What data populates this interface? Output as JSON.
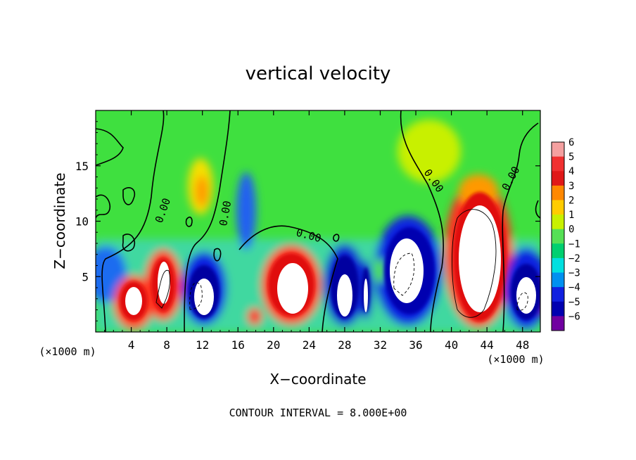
{
  "chart_data": {
    "type": "heatmap",
    "title": "vertical velocity",
    "xlabel": "X−coordinate",
    "ylabel": "Z−coordinate",
    "x_unit": "(×1000 m)",
    "y_unit": "(×1000 m)",
    "xlim": [
      0,
      50
    ],
    "ylim": [
      0,
      20
    ],
    "x_ticks": [
      4,
      8,
      12,
      16,
      20,
      24,
      28,
      32,
      36,
      40,
      44,
      48
    ],
    "y_ticks": [
      5,
      10,
      15
    ],
    "colorbar": {
      "ticks": [
        6,
        5,
        4,
        3,
        2,
        1,
        0,
        -1,
        -2,
        -3,
        -4,
        -5,
        -6
      ],
      "labels": [
        "6",
        "5",
        "4",
        "3",
        "2",
        "1",
        "0",
        "−1",
        "−2",
        "−3",
        "−4",
        "−5",
        "−6"
      ],
      "colors": [
        "#f4a0a0",
        "#f03030",
        "#e01818",
        "#ff8800",
        "#ffcc00",
        "#c8f000",
        "#55e055",
        "#00d070",
        "#00e0e0",
        "#0090f0",
        "#1020e0",
        "#0000b0",
        "#7000a0"
      ]
    },
    "contour_labels": [
      "0.00",
      "0.00",
      "0.00",
      "0.00",
      "0.00"
    ],
    "features": [
      {
        "kind": "updraft",
        "x": 4.5,
        "z": 2.8,
        "peak": 10
      },
      {
        "kind": "updraft",
        "x": 7.5,
        "z": 4.5,
        "peak": 10
      },
      {
        "kind": "downdraft",
        "x": 12,
        "z": 3.5,
        "peak": -10
      },
      {
        "kind": "updraft",
        "x": 21.8,
        "z": 4.5,
        "peak": 10
      },
      {
        "kind": "downdraft",
        "x": 28,
        "z": 3.5,
        "peak": -10
      },
      {
        "kind": "downdraft",
        "x": 35,
        "z": 5,
        "peak": -10
      },
      {
        "kind": "updraft",
        "x": 42.5,
        "z": 7.5,
        "peak": 12
      },
      {
        "kind": "downdraft",
        "x": 47.5,
        "z": 3.5,
        "peak": -10
      }
    ]
  },
  "footer": "CONTOUR INTERVAL = 8.000E+00"
}
